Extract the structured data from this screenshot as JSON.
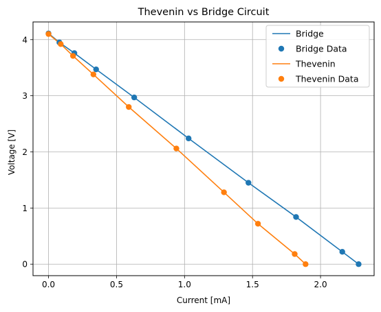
{
  "chart_data": {
    "type": "line",
    "title": "Thevenin vs Bridge Circuit",
    "xlabel": "Current [mA]",
    "ylabel": "Voltage [V]",
    "xlim": [
      -0.114,
      2.394
    ],
    "ylim": [
      -0.205,
      4.315
    ],
    "xticks": [
      0.0,
      0.5,
      1.0,
      1.5,
      2.0
    ],
    "xtick_labels": [
      "0.0",
      "0.5",
      "1.0",
      "1.5",
      "2.0"
    ],
    "yticks": [
      0,
      1,
      2,
      3,
      4
    ],
    "ytick_labels": [
      "0",
      "1",
      "2",
      "3",
      "4"
    ],
    "grid": true,
    "legend_position": "top-right",
    "series": [
      {
        "name": "Bridge",
        "kind": "line",
        "color": "#1f77b4",
        "x": [
          0.0,
          0.08,
          0.19,
          0.35,
          0.63,
          1.03,
          1.47,
          1.82,
          2.16,
          2.28
        ],
        "y": [
          4.11,
          3.95,
          3.76,
          3.47,
          2.97,
          2.24,
          1.45,
          0.84,
          0.22,
          0.0
        ]
      },
      {
        "name": "Bridge Data",
        "kind": "scatter",
        "color": "#1f77b4",
        "x": [
          0.0,
          0.08,
          0.19,
          0.35,
          0.63,
          1.03,
          1.47,
          1.82,
          2.16,
          2.28
        ],
        "y": [
          4.11,
          3.95,
          3.76,
          3.47,
          2.97,
          2.24,
          1.45,
          0.84,
          0.22,
          0.0
        ]
      },
      {
        "name": "Thevenin",
        "kind": "line",
        "color": "#ff7f0e",
        "x": [
          0.0,
          0.09,
          0.18,
          0.33,
          0.59,
          0.94,
          1.29,
          1.54,
          1.81,
          1.89
        ],
        "y": [
          4.1,
          3.92,
          3.71,
          3.38,
          2.8,
          2.06,
          1.28,
          0.72,
          0.18,
          0.0
        ]
      },
      {
        "name": "Thevenin Data",
        "kind": "scatter",
        "color": "#ff7f0e",
        "x": [
          0.0,
          0.09,
          0.18,
          0.33,
          0.59,
          0.94,
          1.29,
          1.54,
          1.81,
          1.89
        ],
        "y": [
          4.1,
          3.92,
          3.71,
          3.38,
          2.8,
          2.06,
          1.28,
          0.72,
          0.18,
          0.0
        ]
      }
    ]
  }
}
